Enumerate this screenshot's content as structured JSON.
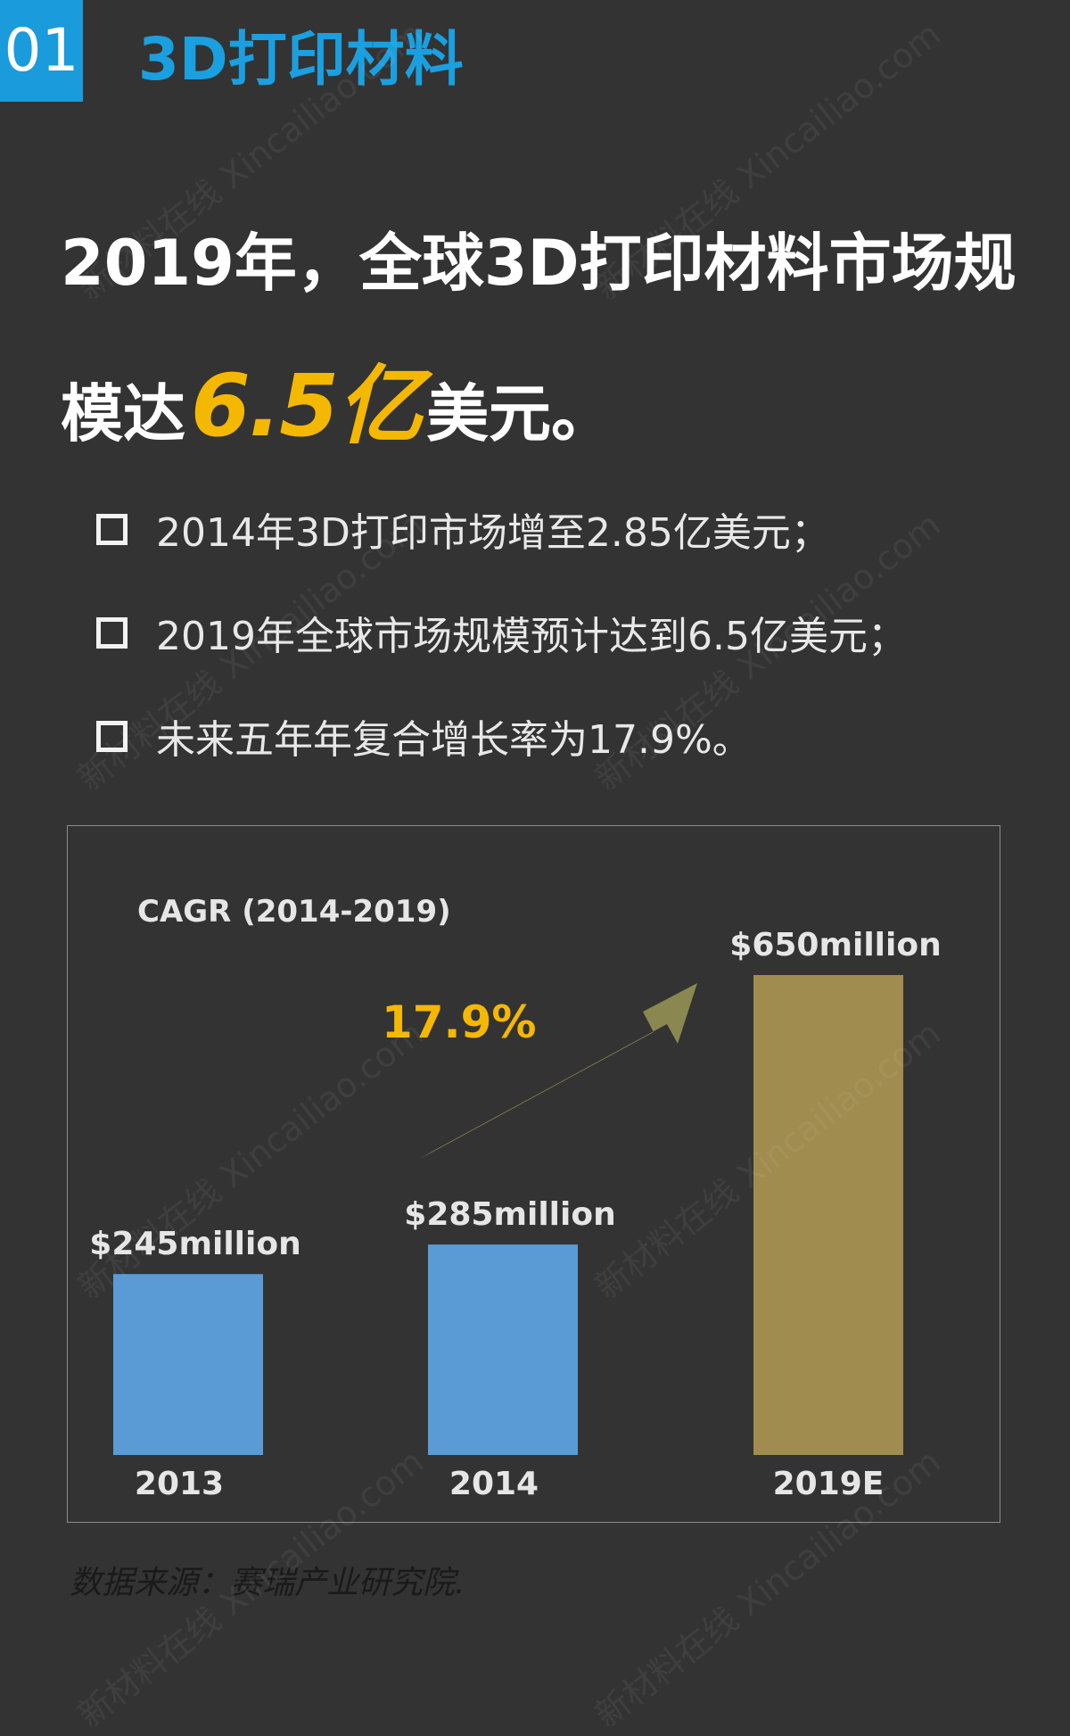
{
  "header": {
    "section_number": "01",
    "section_title": "3D打印材料"
  },
  "headline": {
    "line1": "2019年，全球3D打印材料市场规",
    "line2_prefix": "模达",
    "line2_highlight": "6.5亿",
    "line2_suffix": "美元。"
  },
  "bullets": [
    "2014年3D打印市场增至2.85亿美元；",
    "2019年全球市场规模预计达到6.5亿美元；",
    "未来五年年复合增长率为17.9%。"
  ],
  "chart_data": {
    "type": "bar",
    "categories": [
      "2013",
      "2014",
      "2019E"
    ],
    "values": [
      245,
      285,
      650
    ],
    "value_labels": [
      "$245million",
      "$285million",
      "$650million"
    ],
    "colors": [
      "#5b9bd5",
      "#5b9bd5",
      "#a08c4e"
    ],
    "annotation_title": "CAGR (2014-2019)",
    "cagr_label": "17.9%",
    "arrow_color": "#8a8751",
    "ylim": [
      0,
      650
    ],
    "grid": false,
    "legend": "none"
  },
  "source": "数据来源：赛瑞产业研究院.",
  "watermark": {
    "line1": "新材料在线",
    "line2": "Xincailiao.com"
  },
  "colors": {
    "accent_blue": "#1a9bdc",
    "highlight": "#f5b800",
    "background": "#333333"
  }
}
